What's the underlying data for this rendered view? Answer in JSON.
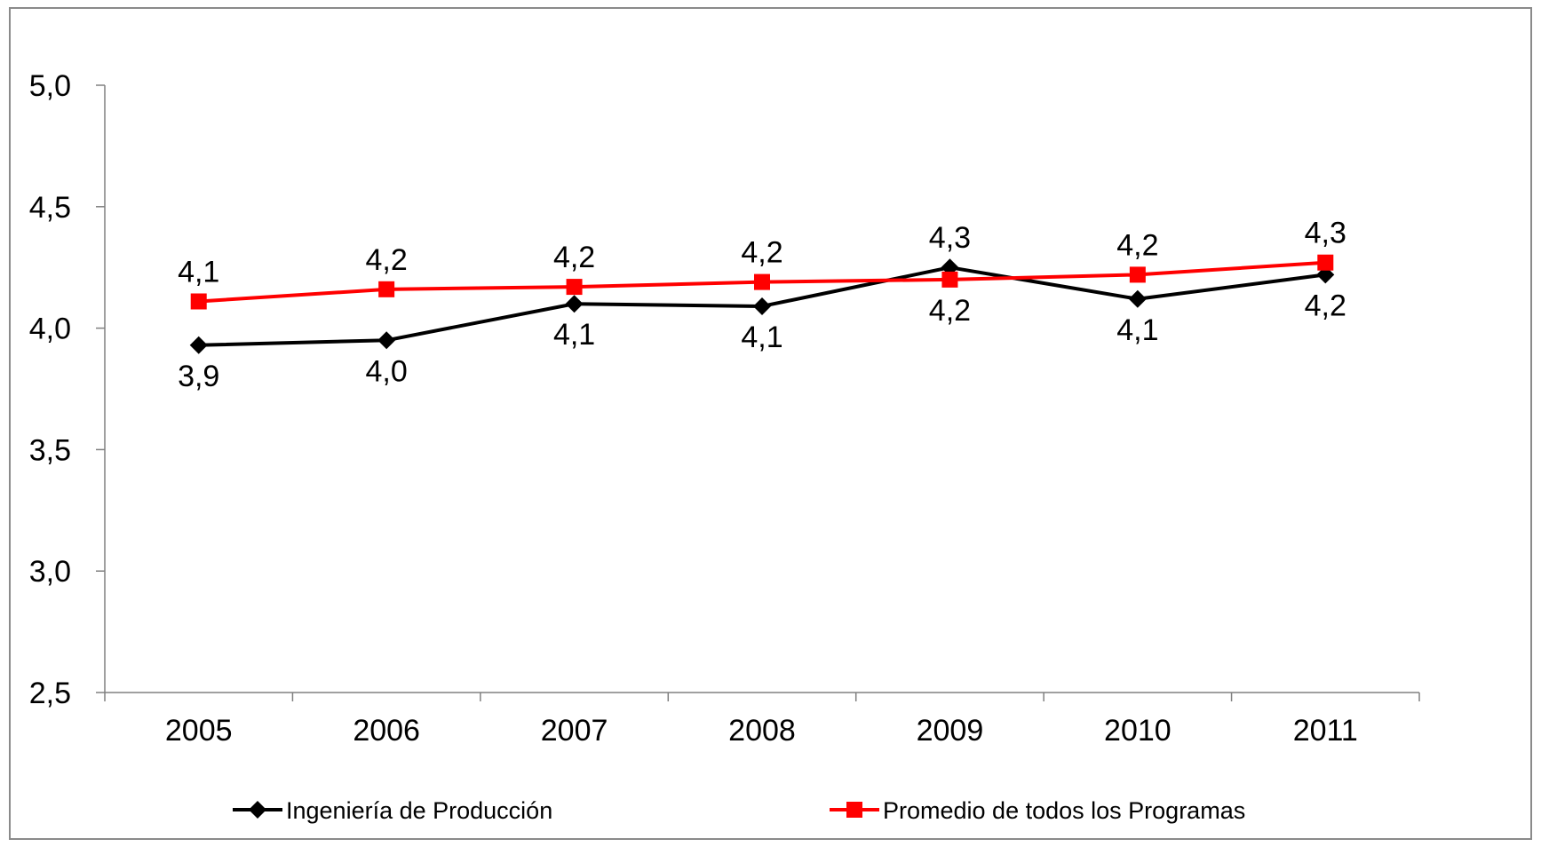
{
  "chart_data": {
    "type": "line",
    "title": "",
    "xlabel": "",
    "ylabel": "",
    "categories": [
      "2005",
      "2006",
      "2007",
      "2008",
      "2009",
      "2010",
      "2011"
    ],
    "ylim": [
      2.5,
      5.0
    ],
    "yticks": [
      2.5,
      3.0,
      3.5,
      4.0,
      4.5,
      5.0
    ],
    "ytick_labels": [
      "2,5",
      "3,0",
      "3,5",
      "4,0",
      "4,5",
      "5,0"
    ],
    "grid": false,
    "legend_position": "bottom",
    "series": [
      {
        "name": "Ingeniería de Producción",
        "color": "#000000",
        "marker": "diamond",
        "values": [
          3.93,
          3.95,
          4.1,
          4.09,
          4.25,
          4.12,
          4.22
        ],
        "labels": [
          "3,9",
          "4,0",
          "4,1",
          "4,1",
          "4,3",
          "4,1",
          "4,2"
        ]
      },
      {
        "name": "Promedio de todos los Programas",
        "color": "#ff0000",
        "marker": "square",
        "values": [
          4.11,
          4.16,
          4.17,
          4.19,
          4.2,
          4.22,
          4.27
        ],
        "labels": [
          "4,1",
          "4,2",
          "4,2",
          "4,2",
          "4,2",
          "4,2",
          "4,3"
        ]
      }
    ]
  }
}
